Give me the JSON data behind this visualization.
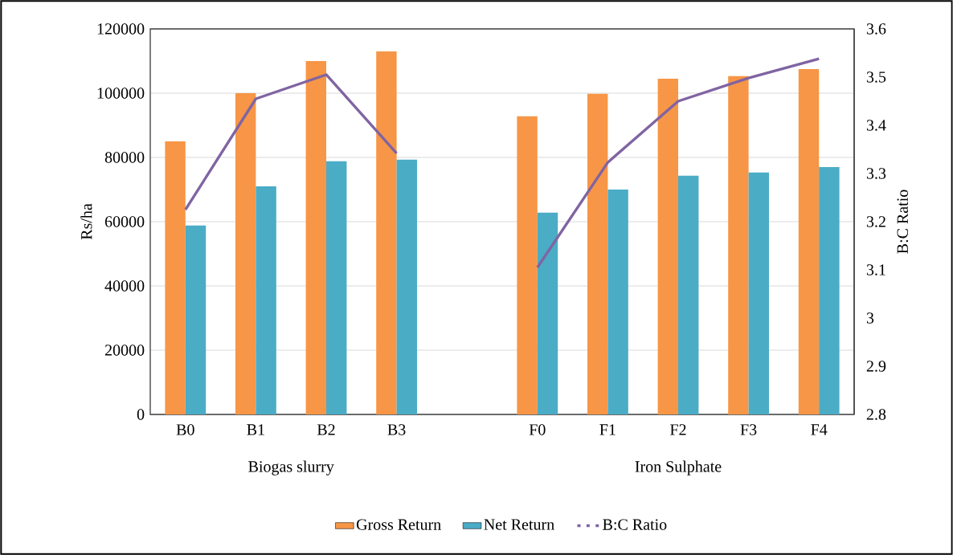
{
  "chart_data": {
    "type": "bar",
    "categories": [
      "B0",
      "B1",
      "B2",
      "B3",
      null,
      "F0",
      "F1",
      "F2",
      "F3",
      "F4"
    ],
    "series": [
      {
        "name": "Gross Return",
        "color": "#f79646",
        "values": [
          85000,
          100000,
          110000,
          113000,
          null,
          92800,
          99800,
          104500,
          105300,
          107500
        ]
      },
      {
        "name": "Net Return",
        "color": "#4bacc6",
        "values": [
          58800,
          71000,
          78800,
          79300,
          null,
          62800,
          70000,
          74300,
          75300,
          77000
        ]
      },
      {
        "name": "B:C Ratio",
        "type": "line",
        "axis": "y2",
        "color": "#8064a2",
        "values": [
          3.225,
          3.455,
          3.505,
          3.342,
          null,
          3.105,
          3.323,
          3.45,
          3.498,
          3.538
        ]
      }
    ],
    "ylabel": "Rs/ha",
    "y2label": "B:C Ratio",
    "ylim": [
      0,
      120000
    ],
    "yticks": [
      0,
      20000,
      40000,
      60000,
      80000,
      100000,
      120000
    ],
    "y2lim": [
      2.8,
      3.6
    ],
    "y2ticks": [
      {
        "value": 2.8,
        "label": "2.8"
      },
      {
        "value": 2.9,
        "label": "2.9"
      },
      3,
      {
        "value": 3.1,
        "label": "3.1"
      },
      {
        "value": 3.2,
        "label": "3.2"
      },
      {
        "value": 3.3,
        "label": "3.3"
      },
      {
        "value": 3.4,
        "label": "3.4"
      },
      {
        "value": 3.5,
        "label": "3.5"
      },
      {
        "value": 3.6,
        "label": "3.6"
      }
    ],
    "annotations": [
      "Biogas slurry",
      "Iron Sulphate"
    ],
    "grid": "y",
    "legend": "bottom",
    "marker": "none",
    "line_style": "solid"
  }
}
